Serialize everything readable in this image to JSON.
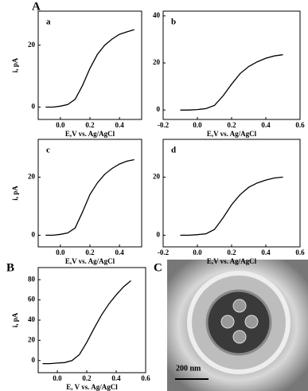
{
  "chart_data": [
    {
      "type": "line",
      "title": "a",
      "xlabel": "E,V vs. Ag/AgCl",
      "ylabel": "i, pA",
      "x": [
        -0.1,
        -0.05,
        0.0,
        0.05,
        0.1,
        0.15,
        0.2,
        0.25,
        0.3,
        0.35,
        0.4,
        0.45,
        0.5
      ],
      "series": [
        {
          "color": "#000000",
          "values": [
            0,
            0,
            0.3,
            0.8,
            2.5,
            7,
            12.5,
            17,
            20,
            22,
            23.5,
            24.3,
            25
          ]
        }
      ],
      "xlim": [
        -0.15,
        0.55
      ],
      "xticks": [
        {
          "value": 0,
          "label": "0.0"
        },
        0.2,
        0.4
      ],
      "ylim": [
        -4,
        31
      ],
      "yticks": [
        0,
        20
      ]
    },
    {
      "type": "line",
      "title": "b",
      "xlabel": "E,V vs. Ag/AgCl",
      "x": [
        -0.1,
        -0.05,
        0.0,
        0.05,
        0.1,
        0.15,
        0.2,
        0.25,
        0.3,
        0.35,
        0.4,
        0.45,
        0.5
      ],
      "series": [
        {
          "color": "#000000",
          "values": [
            0,
            0,
            0.2,
            0.6,
            2,
            6,
            11,
            15.5,
            18.5,
            20.5,
            22,
            23,
            23.5
          ]
        }
      ],
      "xlim": [
        -0.2,
        0.6
      ],
      "xticks": [
        -0.2,
        {
          "value": 0,
          "label": "0.0"
        },
        0.2,
        0.4,
        0.6
      ],
      "ylim": [
        -4,
        42
      ],
      "yticks": [
        0,
        20,
        40
      ]
    },
    {
      "type": "line",
      "title": "c",
      "xlabel": "E,V vs. Ag/AgCl",
      "ylabel": "i, pA",
      "x": [
        -0.1,
        -0.05,
        0.0,
        0.05,
        0.1,
        0.15,
        0.2,
        0.25,
        0.3,
        0.35,
        0.4,
        0.45,
        0.5
      ],
      "series": [
        {
          "color": "#000000",
          "values": [
            0,
            0,
            0.3,
            0.8,
            2.5,
            8,
            14,
            18,
            21,
            23,
            24.5,
            25.5,
            26
          ]
        }
      ],
      "xlim": [
        -0.15,
        0.55
      ],
      "xticks": [
        {
          "value": 0,
          "label": "0.0"
        },
        0.2,
        0.4
      ],
      "ylim": [
        -4,
        33
      ],
      "yticks": [
        0,
        20
      ]
    },
    {
      "type": "line",
      "title": "d",
      "xlabel": "E,V vs. Ag/AgCl",
      "x": [
        -0.1,
        -0.05,
        0.0,
        0.05,
        0.1,
        0.15,
        0.2,
        0.25,
        0.3,
        0.35,
        0.4,
        0.45,
        0.5
      ],
      "series": [
        {
          "color": "#000000",
          "values": [
            0,
            0,
            0.2,
            0.5,
            2,
            6,
            10.5,
            14,
            16.5,
            18,
            19,
            19.7,
            20
          ]
        }
      ],
      "xlim": [
        -0.2,
        0.6
      ],
      "xticks": [
        -0.2,
        {
          "value": 0,
          "label": "0.0"
        },
        0.2,
        0.4,
        0.6
      ],
      "ylim": [
        -4,
        33
      ],
      "yticks": [
        0,
        20
      ]
    },
    {
      "type": "line",
      "xlabel": "E, V vs. Ag/AgCl",
      "ylabel": "i, pA",
      "x": [
        -0.1,
        -0.05,
        0.0,
        0.05,
        0.1,
        0.15,
        0.2,
        0.25,
        0.3,
        0.35,
        0.4,
        0.45,
        0.5
      ],
      "series": [
        {
          "color": "#000000",
          "values": [
            -3,
            -3,
            -2.5,
            -2,
            0,
            6,
            18,
            32,
            45,
            56,
            65,
            73,
            79
          ]
        }
      ],
      "xlim": [
        -0.13,
        0.6
      ],
      "xticks": [
        {
          "value": 0,
          "label": "0.0"
        },
        0.2,
        0.4,
        0.6
      ],
      "ylim": [
        -12,
        92
      ],
      "yticks": [
        0,
        20,
        40,
        60,
        80
      ]
    }
  ],
  "figure": {
    "panel_labels": [
      "A",
      "B",
      "C"
    ],
    "scale_bar": "200 nm"
  }
}
